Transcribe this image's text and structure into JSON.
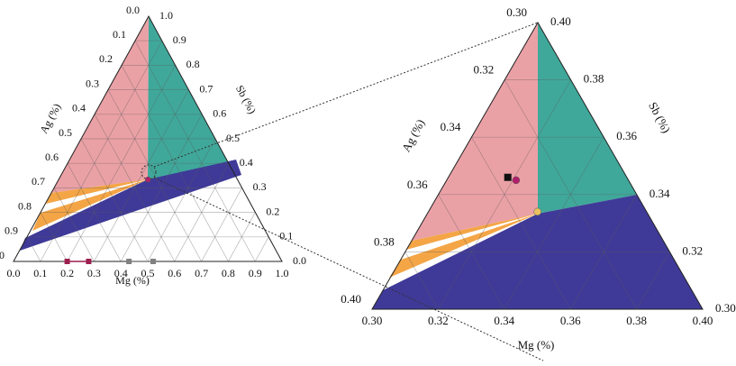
{
  "chart_data": [
    {
      "type": "ternary",
      "lim": [
        0,
        1
      ],
      "axes": {
        "mg": {
          "title": "Mg (%)",
          "ticks": [
            {
              "value": 0,
              "label": "0.0"
            },
            0.1,
            0.2,
            0.3,
            0.4,
            0.5,
            0.6,
            0.7,
            0.8,
            0.9,
            {
              "value": 1,
              "label": "1.0"
            }
          ]
        },
        "ag": {
          "title": "Ag (%)",
          "ticks": [
            {
              "value": 0,
              "label": "0.0"
            },
            0.1,
            0.2,
            0.3,
            0.4,
            0.5,
            0.6,
            0.7,
            0.8,
            0.9,
            {
              "value": 1,
              "label": "1.0"
            }
          ]
        },
        "sb": {
          "title": "Sb (%)",
          "ticks": [
            {
              "value": 0,
              "label": "0.0"
            },
            0.1,
            0.2,
            0.3,
            0.4,
            0.5,
            0.6,
            0.7,
            0.8,
            0.9,
            {
              "value": 1,
              "label": "1.0"
            }
          ]
        }
      },
      "series": [
        {
          "color": "#9c1f4f",
          "mg": [
            0.2,
            0.28
          ]
        },
        {
          "color": "#808080",
          "mg": [
            0.43,
            0.52
          ]
        }
      ],
      "points": [
        {
          "marker": "circle",
          "color": "#b0206a",
          "ag": 0.333,
          "mg": 0.333,
          "sb": 0.334
        }
      ]
    },
    {
      "type": "ternary",
      "lim": [
        0.3,
        0.4
      ],
      "axes": {
        "mg": {
          "title": "Mg (%)",
          "ticks": [
            {
              "value": 0.3,
              "label": "0.30"
            },
            0.32,
            0.34,
            0.36,
            0.38,
            {
              "value": 0.4,
              "label": "0.40"
            }
          ]
        },
        "ag": {
          "title": "Ag (%)",
          "ticks": [
            {
              "value": 0.3,
              "label": "0.30"
            },
            0.32,
            0.34,
            0.36,
            0.38,
            {
              "value": 0.4,
              "label": "0.40"
            }
          ]
        },
        "sb": {
          "title": "Sb (%)",
          "ticks": [
            {
              "value": 0.3,
              "label": "0.30"
            },
            0.32,
            0.34,
            0.36,
            0.38,
            {
              "value": 0.4,
              "label": "0.40"
            }
          ]
        }
      },
      "series": [],
      "points": [
        {
          "marker": "square",
          "color": "#111111",
          "ag": 0.336,
          "mg": 0.318,
          "sb": 0.346
        },
        {
          "marker": "circle",
          "color": "#b0206a",
          "ag": 0.334,
          "mg": 0.321,
          "sb": 0.345
        },
        {
          "marker": "circle",
          "color": "#e8c060",
          "ag": 0.333,
          "mg": 0.333,
          "sb": 0.334
        }
      ]
    }
  ]
}
